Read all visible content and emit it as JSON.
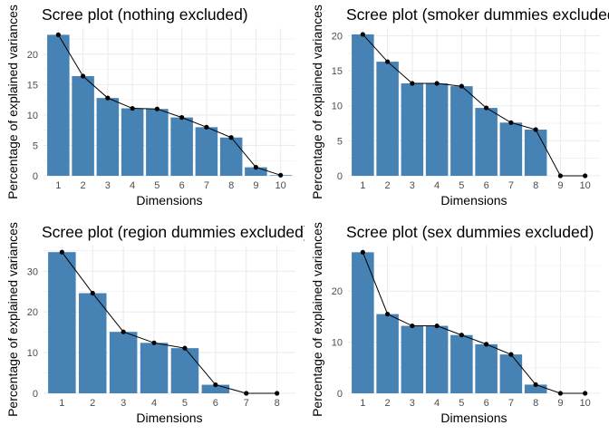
{
  "chart_data": [
    {
      "type": "bar",
      "title": "Scree plot (nothing excluded)",
      "xlabel": "Dimensions",
      "ylabel": "Percentage of explained variances",
      "categories": [
        "1",
        "2",
        "3",
        "4",
        "5",
        "6",
        "7",
        "8",
        "9",
        "10"
      ],
      "values": [
        23.2,
        16.4,
        12.8,
        11.1,
        11.0,
        9.6,
        8.0,
        6.3,
        1.4,
        0.1
      ],
      "yticks": [
        0,
        5,
        10,
        15,
        20
      ],
      "ylim": [
        0,
        24.3
      ],
      "bar_color": "#4682B4",
      "line": true,
      "grid": true
    },
    {
      "type": "bar",
      "title": "Scree plot (smoker dummies excluded)",
      "xlabel": "Dimensions",
      "ylabel": "Percentage of explained variances",
      "categories": [
        "1",
        "2",
        "3",
        "4",
        "5",
        "6",
        "7",
        "8",
        "9",
        "10"
      ],
      "values": [
        20.2,
        16.3,
        13.2,
        13.2,
        12.8,
        9.7,
        7.6,
        6.6,
        0.0,
        0.0
      ],
      "yticks": [
        0,
        5,
        10,
        15,
        20
      ],
      "ylim": [
        0,
        21.1
      ],
      "bar_color": "#4682B4",
      "line": true,
      "grid": true
    },
    {
      "type": "bar",
      "title": "Scree plot (region dummies excluded)",
      "xlabel": "Dimensions",
      "ylabel": "Percentage of explained variances",
      "categories": [
        "1",
        "2",
        "3",
        "4",
        "5",
        "6",
        "7",
        "8"
      ],
      "values": [
        34.7,
        24.6,
        15.1,
        12.4,
        11.1,
        2.1,
        0.0,
        0.0
      ],
      "yticks": [
        0,
        10,
        20,
        30
      ],
      "ylim": [
        0,
        36.3
      ],
      "bar_color": "#4682B4",
      "line": true,
      "grid": true
    },
    {
      "type": "bar",
      "title": "Scree plot (sex dummies excluded)",
      "xlabel": "Dimensions",
      "ylabel": "Percentage of explained variances",
      "categories": [
        "1",
        "2",
        "3",
        "4",
        "5",
        "6",
        "7",
        "8",
        "9",
        "10"
      ],
      "values": [
        27.6,
        15.5,
        13.2,
        13.2,
        11.4,
        9.6,
        7.6,
        1.7,
        0.0,
        0.0
      ],
      "yticks": [
        0,
        10,
        20
      ],
      "ylim": [
        0,
        28.9
      ],
      "bar_color": "#4682B4",
      "line": true,
      "grid": true
    }
  ]
}
